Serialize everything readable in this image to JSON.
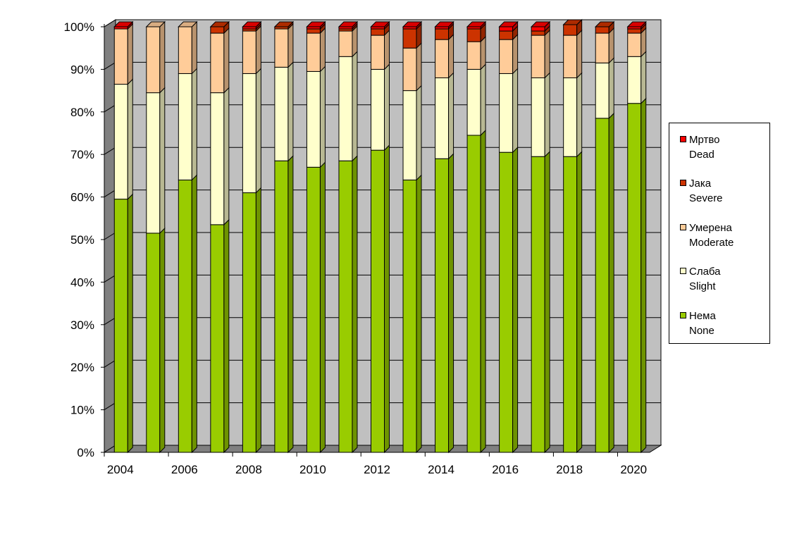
{
  "chart_data": {
    "type": "bar",
    "stacked": true,
    "percent": true,
    "x": [
      2004,
      2005,
      2006,
      2007,
      2008,
      2009,
      2010,
      2011,
      2012,
      2013,
      2014,
      2015,
      2016,
      2017,
      2018,
      2019,
      2020
    ],
    "x_tick_labels": [
      "2004",
      "2006",
      "2008",
      "2010",
      "2012",
      "2014",
      "2016",
      "2018",
      "2020"
    ],
    "y_tick_labels": [
      "0%",
      "10%",
      "20%",
      "30%",
      "40%",
      "50%",
      "60%",
      "70%",
      "80%",
      "90%",
      "100%"
    ],
    "ylim": [
      0,
      100
    ],
    "grid": true,
    "legend_position": "right",
    "series": [
      {
        "name": "Нема",
        "name_en": "None",
        "color": "#99cc00",
        "values": [
          59.5,
          51.5,
          64,
          53.5,
          61,
          68.5,
          67,
          68.5,
          71,
          64,
          69,
          74.5,
          70.5,
          69.5,
          69.5,
          78.5,
          82
        ]
      },
      {
        "name": "Слаба",
        "name_en": "Slight",
        "color": "#ffffcc",
        "values": [
          27,
          33,
          25,
          31,
          28,
          22,
          22.5,
          24.5,
          19,
          21,
          19,
          15.5,
          18.5,
          18.5,
          18.5,
          13,
          11
        ]
      },
      {
        "name": "Умерена",
        "name_en": "Moderate",
        "color": "#ffcc99",
        "values": [
          13,
          15.5,
          11,
          14,
          10,
          9,
          9,
          6,
          8,
          10,
          9,
          6.5,
          8,
          10,
          10,
          7,
          5.5
        ]
      },
      {
        "name": "Јака",
        "name_en": "Severe",
        "color": "#cc3300",
        "values": [
          0,
          0,
          0,
          1.5,
          0.5,
          0.5,
          1,
          0.5,
          1.5,
          4.5,
          2.5,
          3,
          2,
          1,
          2.5,
          1.5,
          1
        ]
      },
      {
        "name": "Мртво",
        "name_en": "Dead",
        "color": "#ff0000",
        "values": [
          0.5,
          0,
          0,
          0,
          0.5,
          0,
          0.5,
          0.5,
          0.5,
          0.5,
          0.5,
          0.5,
          1,
          1,
          0,
          0,
          0.5
        ]
      }
    ],
    "colors": {
      "wall": "#c0c0c0",
      "floor": "#808080",
      "grid": "#000000"
    }
  }
}
